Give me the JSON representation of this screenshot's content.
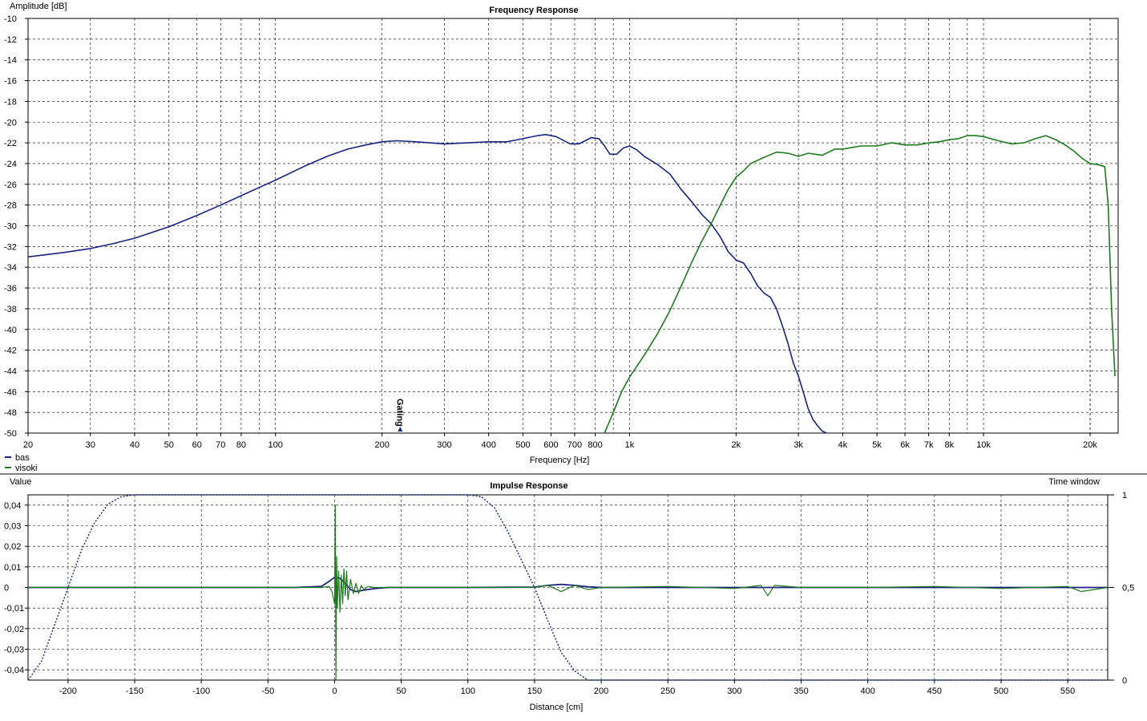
{
  "colors": {
    "bas": "#1a237e",
    "visoki": "#1f7a1f",
    "grid": "#000000",
    "divider": "#000000"
  },
  "legend": [
    {
      "name": "bas",
      "color": "#1a237e"
    },
    {
      "name": "visoki",
      "color": "#1f7a1f"
    }
  ],
  "freq": {
    "title": "Frequency Response",
    "ylabel": "Amplitude [dB]",
    "xlabel": "Frequency [Hz]",
    "marker_label": "Gating",
    "marker_x": 225
  },
  "imp": {
    "title": "Impulse Response",
    "ylabel": "Value",
    "xlabel": "Distance [cm]",
    "y2label": "Time window"
  },
  "chart_data": [
    {
      "type": "line",
      "title": "Frequency Response",
      "xlabel": "Frequency [Hz]",
      "ylabel": "Amplitude [dB]",
      "xscale": "log",
      "xlim": [
        20,
        24000
      ],
      "ylim": [
        -50,
        -10
      ],
      "grid": true,
      "legend": "bottom-left",
      "yticks": [
        -10,
        -12,
        -14,
        -16,
        -18,
        -20,
        -22,
        -24,
        -26,
        -28,
        -30,
        -32,
        -34,
        -36,
        -38,
        -40,
        -42,
        -44,
        -46,
        -48,
        -50
      ],
      "xticks": [
        {
          "v": 20,
          "l": "20"
        },
        {
          "v": 30,
          "l": "30"
        },
        {
          "v": 40,
          "l": "40"
        },
        {
          "v": 50,
          "l": "50"
        },
        {
          "v": 60,
          "l": "60"
        },
        {
          "v": 70,
          "l": "70"
        },
        {
          "v": 80,
          "l": "80"
        },
        {
          "v": 100,
          "l": "100"
        },
        {
          "v": 200,
          "l": "200"
        },
        {
          "v": 300,
          "l": "300"
        },
        {
          "v": 400,
          "l": "400"
        },
        {
          "v": 500,
          "l": "500"
        },
        {
          "v": 600,
          "l": "600"
        },
        {
          "v": 700,
          "l": "700"
        },
        {
          "v": 800,
          "l": "800"
        },
        {
          "v": 1000,
          "l": "1k"
        },
        {
          "v": 2000,
          "l": "2k"
        },
        {
          "v": 3000,
          "l": "3k"
        },
        {
          "v": 4000,
          "l": "4k"
        },
        {
          "v": 5000,
          "l": "5k"
        },
        {
          "v": 6000,
          "l": "6k"
        },
        {
          "v": 7000,
          "l": "7k"
        },
        {
          "v": 8000,
          "l": "8k"
        },
        {
          "v": 10000,
          "l": "10k"
        },
        {
          "v": 20000,
          "l": "20k"
        }
      ],
      "series": [
        {
          "name": "bas",
          "x": [
            20,
            25,
            30,
            35,
            40,
            50,
            60,
            70,
            80,
            90,
            100,
            120,
            140,
            160,
            180,
            200,
            220,
            250,
            300,
            350,
            400,
            450,
            500,
            550,
            580,
            620,
            680,
            720,
            780,
            820,
            850,
            880,
            920,
            960,
            1000,
            1050,
            1100,
            1200,
            1300,
            1400,
            1500,
            1600,
            1700,
            1800,
            1900,
            2000,
            2100,
            2200,
            2300,
            2400,
            2500,
            2600,
            2700,
            2800,
            2900,
            3000,
            3100,
            3200,
            3300,
            3400,
            3500,
            3600
          ],
          "y": [
            -33,
            -32.6,
            -32.2,
            -31.7,
            -31.2,
            -30.1,
            -29,
            -28,
            -27.1,
            -26.3,
            -25.6,
            -24.3,
            -23.3,
            -22.6,
            -22.2,
            -21.9,
            -21.8,
            -21.9,
            -22.1,
            -22,
            -21.9,
            -21.9,
            -21.6,
            -21.3,
            -21.2,
            -21.4,
            -22.1,
            -22.1,
            -21.5,
            -21.6,
            -22.3,
            -23.1,
            -23.1,
            -22.5,
            -22.3,
            -22.7,
            -23.3,
            -24.1,
            -25,
            -26.5,
            -27.7,
            -28.9,
            -29.8,
            -31,
            -32.5,
            -33.3,
            -33.6,
            -34.6,
            -35.8,
            -36.5,
            -36.9,
            -38,
            -39.6,
            -41.3,
            -43.2,
            -44.5,
            -46.1,
            -47.7,
            -48.7,
            -49.3,
            -49.8,
            -50
          ]
        },
        {
          "name": "visoki",
          "x": [
            850,
            900,
            950,
            1000,
            1100,
            1200,
            1300,
            1400,
            1500,
            1600,
            1700,
            1800,
            1900,
            2000,
            2100,
            2200,
            2400,
            2600,
            2800,
            3000,
            3200,
            3500,
            3800,
            4000,
            4500,
            5000,
            5500,
            6000,
            6500,
            7000,
            7500,
            8000,
            8500,
            9000,
            9500,
            10000,
            11000,
            12000,
            13000,
            14000,
            15000,
            16000,
            17000,
            18000,
            19000,
            20000,
            21000,
            22000,
            22500,
            23000,
            23500
          ],
          "y": [
            -50,
            -48,
            -46,
            -44.6,
            -42.5,
            -40.4,
            -38.2,
            -35.8,
            -33.5,
            -31.5,
            -29.8,
            -28.1,
            -26.5,
            -25.3,
            -24.7,
            -24.0,
            -23.4,
            -22.9,
            -23.0,
            -23.3,
            -23.0,
            -23.2,
            -22.6,
            -22.6,
            -22.3,
            -22.3,
            -22.0,
            -22.2,
            -22.2,
            -22.0,
            -21.9,
            -21.7,
            -21.6,
            -21.3,
            -21.3,
            -21.4,
            -21.8,
            -22.1,
            -22.0,
            -21.6,
            -21.3,
            -21.7,
            -22.2,
            -22.8,
            -23.5,
            -24,
            -24.1,
            -24.3,
            -28,
            -38,
            -44.5
          ]
        }
      ]
    },
    {
      "type": "line",
      "title": "Impulse Response",
      "xlabel": "Distance [cm]",
      "ylabel": "Value",
      "y2label": "Time window",
      "xlim": [
        -230,
        580
      ],
      "ylim": [
        -0.045,
        0.045
      ],
      "y2lim": [
        0,
        1
      ],
      "grid": true,
      "yticks": [
        {
          "v": 0.04,
          "l": "0,04"
        },
        {
          "v": 0.03,
          "l": "0,03"
        },
        {
          "v": 0.02,
          "l": "0,02"
        },
        {
          "v": 0.01,
          "l": "0,01"
        },
        {
          "v": 0,
          "l": "0"
        },
        {
          "v": -0.01,
          "l": "-0,01"
        },
        {
          "v": -0.02,
          "l": "-0,02"
        },
        {
          "v": -0.03,
          "l": "-0,03"
        },
        {
          "v": -0.04,
          "l": "-0,04"
        }
      ],
      "y2ticks": [
        {
          "v": 1,
          "l": "1"
        },
        {
          "v": 0.5,
          "l": "0,5"
        },
        {
          "v": 0,
          "l": "0"
        }
      ],
      "xticks": [
        -200,
        -150,
        -100,
        -50,
        0,
        50,
        100,
        150,
        200,
        250,
        300,
        350,
        400,
        450,
        500,
        550
      ],
      "series": [
        {
          "name": "bas",
          "x": [
            -230,
            -30,
            -10,
            -4,
            0,
            4,
            8,
            12,
            16,
            20,
            25,
            30,
            40,
            60,
            100,
            150,
            160,
            170,
            180,
            190,
            200,
            250,
            300,
            350,
            400,
            450,
            500,
            550,
            580
          ],
          "y": [
            0,
            0,
            0.0005,
            0.003,
            0.005,
            0.0045,
            0.002,
            -0.001,
            -0.002,
            -0.0015,
            -0.001,
            -0.0005,
            0,
            0,
            0,
            0.0002,
            0.001,
            0.0015,
            0.001,
            0.0003,
            0,
            0,
            0,
            0,
            0,
            0,
            0,
            0,
            0
          ]
        },
        {
          "name": "visoki",
          "x": [
            -230,
            -30,
            -10,
            -4,
            -2,
            0,
            0.5,
            1,
            1.5,
            2,
            3,
            4,
            5,
            6,
            7,
            8,
            9,
            10,
            12,
            14,
            16,
            18,
            20,
            22,
            25,
            30,
            40,
            60,
            100,
            150,
            160,
            170,
            180,
            190,
            200,
            250,
            300,
            320,
            325,
            330,
            350,
            400,
            450,
            500,
            550,
            560,
            580
          ],
          "y": [
            0,
            0,
            0,
            0.0005,
            -0.002,
            -0.008,
            0.04,
            -0.045,
            0.015,
            -0.01,
            0.008,
            -0.012,
            0.006,
            -0.008,
            0.009,
            -0.004,
            0.008,
            -0.006,
            0.004,
            -0.003,
            0.002,
            -0.003,
            0.001,
            -0.001,
            0.0005,
            0,
            0,
            0,
            0,
            0,
            0.001,
            -0.002,
            0.001,
            -0.001,
            0,
            0.0005,
            -0.0005,
            0.001,
            -0.004,
            0.001,
            0,
            0,
            0.0005,
            -0.0005,
            0.0005,
            -0.002,
            0
          ]
        },
        {
          "name": "time window",
          "x": [
            -230,
            -220,
            -210,
            -200,
            -190,
            -180,
            -170,
            -160,
            -150,
            100,
            110,
            120,
            130,
            140,
            150,
            160,
            170,
            180,
            190,
            580
          ],
          "y2": [
            0,
            0.1,
            0.3,
            0.5,
            0.7,
            0.85,
            0.95,
            0.99,
            1,
            1,
            0.99,
            0.93,
            0.8,
            0.65,
            0.5,
            0.32,
            0.15,
            0.05,
            0,
            0
          ]
        }
      ]
    }
  ]
}
